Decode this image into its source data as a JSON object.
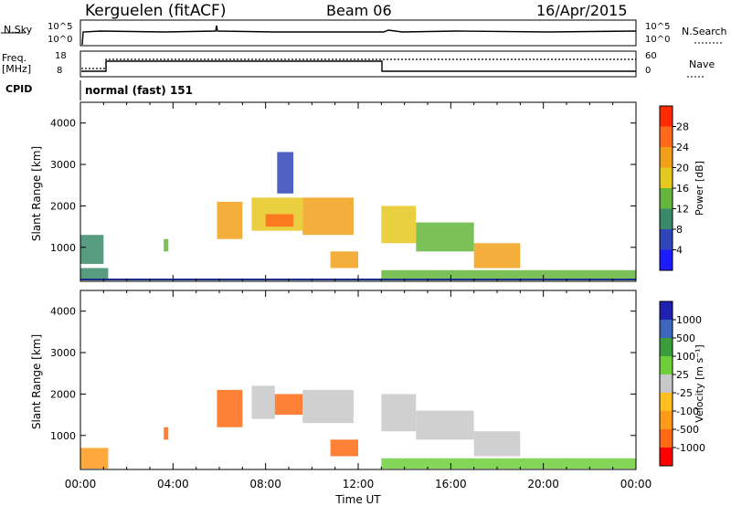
{
  "header": {
    "station": "Kerguelen (fitACF)",
    "beam": "Beam 06",
    "date": "16/Apr/2015"
  },
  "status": {
    "nsky_label": "N.Sky",
    "nsky_top": "10^5",
    "nsky_bottom": "10^0",
    "nsearch_label": "N.Search",
    "right_top": "10^5",
    "right_bottom": "10^0",
    "freq_label": "Freq.",
    "freq_unit": "[MHz]",
    "freq_top": "18",
    "freq_bottom": "8",
    "nave_label": "Nave",
    "nave_top": "60",
    "nave_bottom": "0",
    "cpid_label": "CPID",
    "mode": "normal (fast) 151"
  },
  "colors": {
    "power": [
      "#1c1cff",
      "#2f45b8",
      "#3a8a6a",
      "#64b53c",
      "#e6c81e",
      "#f2a01a",
      "#ff6a1a",
      "#ff2a00"
    ],
    "velocity": [
      "#ff0000",
      "#ff6a14",
      "#ff9a1a",
      "#ffbf1f",
      "#c8c8c8",
      "#6ecf3c",
      "#3a9c3a",
      "#3a66bb",
      "#2020b0"
    ],
    "ground_line": "#1a2f8a"
  },
  "chart_data": [
    {
      "type": "heatmap",
      "name": "power",
      "ylabel": "Slant Range [km]",
      "xlabel": "",
      "y_ticks": [
        "1000",
        "2000",
        "3000",
        "4000"
      ],
      "y_tick_values": [
        1000,
        2000,
        3000,
        4000
      ],
      "x_ticks": [],
      "colorbar_label": "Power [dB]",
      "colorbar_ticks": [
        "4",
        "8",
        "12",
        "16",
        "20",
        "24",
        "28"
      ],
      "colorbar_range": [
        0,
        32
      ],
      "xlim_hours": [
        0,
        24
      ],
      "ylim_km": [
        180,
        4500
      ],
      "regions": [
        {
          "t": [
            0.0,
            1.0
          ],
          "r": [
            600,
            1300
          ],
          "v": 8
        },
        {
          "t": [
            0.0,
            1.2
          ],
          "r": [
            200,
            500
          ],
          "v": 10
        },
        {
          "t": [
            3.6,
            3.8
          ],
          "r": [
            900,
            1200
          ],
          "v": 12
        },
        {
          "t": [
            5.9,
            7.0
          ],
          "r": [
            1200,
            2100
          ],
          "v": 22
        },
        {
          "t": [
            7.4,
            9.6
          ],
          "r": [
            1400,
            2200
          ],
          "v": 18
        },
        {
          "t": [
            8.0,
            9.2
          ],
          "r": [
            1500,
            1800
          ],
          "v": 26
        },
        {
          "t": [
            9.6,
            11.8
          ],
          "r": [
            1300,
            2200
          ],
          "v": 20
        },
        {
          "t": [
            8.5,
            9.2
          ],
          "r": [
            2300,
            3300
          ],
          "v": 6
        },
        {
          "t": [
            10.8,
            12.0
          ],
          "r": [
            500,
            900
          ],
          "v": 22
        },
        {
          "t": [
            13.0,
            14.5
          ],
          "r": [
            1100,
            2000
          ],
          "v": 18
        },
        {
          "t": [
            14.5,
            17.0
          ],
          "r": [
            900,
            1600
          ],
          "v": 14
        },
        {
          "t": [
            17.0,
            19.0
          ],
          "r": [
            500,
            1100
          ],
          "v": 20
        },
        {
          "t": [
            13.0,
            24.0
          ],
          "r": [
            200,
            450
          ],
          "v": 14
        }
      ]
    },
    {
      "type": "heatmap",
      "name": "velocity",
      "ylabel": "Slant Range [km]",
      "xlabel": "Time UT",
      "y_ticks": [
        "1000",
        "2000",
        "3000",
        "4000"
      ],
      "y_tick_values": [
        1000,
        2000,
        3000,
        4000
      ],
      "x_ticks": [
        "00:00",
        "04:00",
        "08:00",
        "12:00",
        "16:00",
        "20:00",
        "00:00"
      ],
      "x_tick_values": [
        0,
        4,
        8,
        12,
        16,
        20,
        24
      ],
      "colorbar_label": "Velocity [m s⁻¹]",
      "colorbar_ticks": [
        "-1000",
        "-500",
        "-100",
        "-25",
        "25",
        "100",
        "500",
        "1000"
      ],
      "xlim_hours": [
        0,
        24
      ],
      "ylim_km": [
        180,
        4500
      ],
      "regions": [
        {
          "t": [
            0.0,
            1.2
          ],
          "r": [
            200,
            700
          ],
          "v": -100
        },
        {
          "t": [
            3.6,
            3.8
          ],
          "r": [
            900,
            1200
          ],
          "v": -500
        },
        {
          "t": [
            5.9,
            7.0
          ],
          "r": [
            1200,
            2100
          ],
          "v": -500
        },
        {
          "t": [
            7.4,
            8.4
          ],
          "r": [
            1400,
            2200
          ],
          "v": 0
        },
        {
          "t": [
            8.4,
            9.6
          ],
          "r": [
            1500,
            2000
          ],
          "v": -500
        },
        {
          "t": [
            9.6,
            11.8
          ],
          "r": [
            1300,
            2100
          ],
          "v": 0
        },
        {
          "t": [
            10.8,
            12.0
          ],
          "r": [
            500,
            900
          ],
          "v": -500
        },
        {
          "t": [
            13.0,
            14.5
          ],
          "r": [
            1100,
            2000
          ],
          "v": 0
        },
        {
          "t": [
            14.5,
            17.0
          ],
          "r": [
            900,
            1600
          ],
          "v": 0
        },
        {
          "t": [
            17.0,
            19.0
          ],
          "r": [
            500,
            1100
          ],
          "v": 0
        },
        {
          "t": [
            13.0,
            24.0
          ],
          "r": [
            200,
            450
          ],
          "v": 100
        }
      ]
    }
  ]
}
